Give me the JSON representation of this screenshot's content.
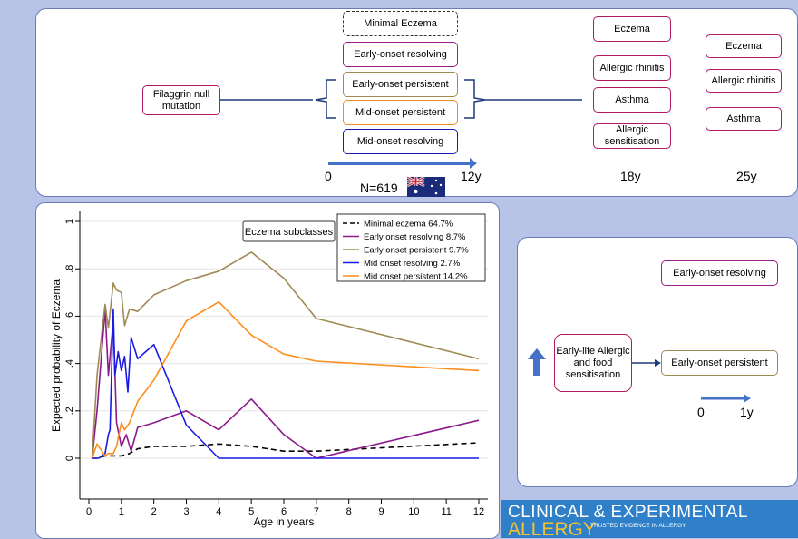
{
  "top_panel": {
    "gene_box": "Filaggrin null mutation",
    "subclasses": [
      {
        "label": "Minimal Eczema",
        "style": "dashed",
        "color": "#333333"
      },
      {
        "label": "Early-onset resolving",
        "style": "solid",
        "color": "#9a1f8c"
      },
      {
        "label": "Early-onset persistent",
        "style": "solid",
        "color": "#a08a54"
      },
      {
        "label": "Mid-onset persistent",
        "style": "solid",
        "color": "#f08a1d"
      },
      {
        "label": "Mid-onset resolving",
        "style": "solid",
        "color": "#1a1ab8"
      }
    ],
    "outcomes_18y": [
      "Eczema",
      "Allergic rhinitis",
      "Asthma",
      "Allergic sensitisation"
    ],
    "outcomes_25y": [
      "Eczema",
      "Allergic rhinitis",
      "Asthma"
    ],
    "timeline": {
      "start": "0",
      "end": "12y",
      "t18": "18y",
      "t25": "25y"
    },
    "n_label": "N=619"
  },
  "right_panel": {
    "early_life_box": "Early-life Allergic and food sensitisation",
    "resolving_box": "Early-onset resolving",
    "persistent_box": "Early-onset persistent",
    "timeline_start": "0",
    "timeline_end": "1y"
  },
  "logo": {
    "line1": "CLINICAL & EXPERIMENTAL",
    "line2": "ALLERGY",
    "tagline": "TRUSTED EVIDENCE IN ALLERGY"
  },
  "chart_data": {
    "type": "line",
    "annotation": "Eczema subclasses",
    "xlabel": "Age in years",
    "ylabel": "Expected probability of Eczema",
    "xlim": [
      0,
      12
    ],
    "ylim": [
      0,
      1
    ],
    "xticks": [
      0,
      1,
      2,
      3,
      4,
      5,
      6,
      7,
      8,
      9,
      10,
      11,
      12
    ],
    "yticks": [
      0,
      0.2,
      0.4,
      0.6,
      0.8,
      1
    ],
    "ytick_labels": [
      "0",
      ".2",
      ".4",
      ".6",
      ".8",
      "1"
    ],
    "grid": true,
    "legend_position": "top-right",
    "series": [
      {
        "name": "Minimal eczema 64.7%",
        "color": "#000000",
        "dash": true,
        "x": [
          0.1,
          0.25,
          0.5,
          0.75,
          1,
          1.25,
          1.5,
          2,
          3,
          4,
          5,
          6,
          7,
          12
        ],
        "y": [
          0.0,
          0.0,
          0.01,
          0.01,
          0.01,
          0.02,
          0.04,
          0.05,
          0.05,
          0.06,
          0.05,
          0.03,
          0.03,
          0.065
        ]
      },
      {
        "name": "Early onset resolving 8.7%",
        "color": "#8b1a8b",
        "x": [
          0.1,
          0.25,
          0.5,
          0.6,
          0.75,
          0.85,
          1,
          1.15,
          1.3,
          1.5,
          2,
          3,
          4,
          5,
          6,
          7,
          12
        ],
        "y": [
          0.0,
          0.2,
          0.63,
          0.35,
          0.58,
          0.15,
          0.05,
          0.1,
          0.03,
          0.13,
          0.15,
          0.2,
          0.12,
          0.25,
          0.1,
          0.0,
          0.16
        ]
      },
      {
        "name": "Early onset persistent 9.7%",
        "color": "#a08a54",
        "x": [
          0.1,
          0.25,
          0.5,
          0.6,
          0.75,
          0.85,
          1,
          1.1,
          1.25,
          1.5,
          2,
          3,
          4,
          5,
          6,
          7,
          12
        ],
        "y": [
          0.0,
          0.35,
          0.65,
          0.55,
          0.74,
          0.71,
          0.7,
          0.56,
          0.63,
          0.62,
          0.69,
          0.75,
          0.79,
          0.87,
          0.76,
          0.59,
          0.42
        ]
      },
      {
        "name": "Mid onset resolving 2.7%",
        "color": "#1a1ae6",
        "x": [
          0.1,
          0.3,
          0.5,
          0.6,
          0.65,
          0.75,
          0.8,
          0.9,
          1,
          1.1,
          1.2,
          1.3,
          1.5,
          2,
          3,
          4,
          5,
          6,
          7,
          12
        ],
        "y": [
          0.0,
          0.0,
          0.02,
          0.1,
          0.12,
          0.63,
          0.35,
          0.45,
          0.37,
          0.43,
          0.28,
          0.51,
          0.42,
          0.48,
          0.14,
          0.0,
          0.0,
          0.0,
          0.0,
          0.0
        ]
      },
      {
        "name": "Mid onset persistent 14.2%",
        "color": "#ff8c1a",
        "x": [
          0.1,
          0.25,
          0.5,
          0.6,
          0.75,
          0.85,
          1,
          1.1,
          1.25,
          1.5,
          2,
          3,
          4,
          5,
          6,
          7,
          12
        ],
        "y": [
          0.0,
          0.06,
          0.01,
          0.02,
          0.02,
          0.05,
          0.15,
          0.12,
          0.15,
          0.24,
          0.33,
          0.58,
          0.66,
          0.52,
          0.44,
          0.41,
          0.37
        ]
      }
    ]
  }
}
